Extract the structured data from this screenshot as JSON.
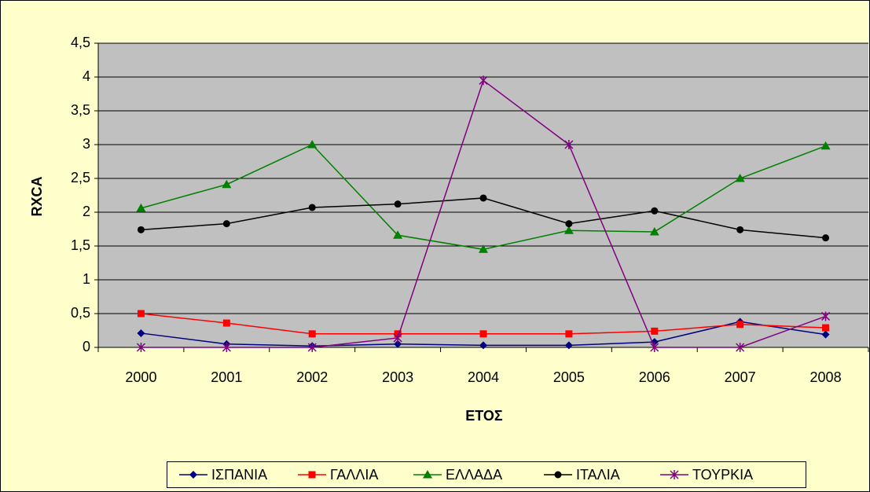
{
  "chart_data": {
    "type": "line",
    "categories": [
      "2000",
      "2001",
      "2002",
      "2003",
      "2004",
      "2005",
      "2006",
      "2007",
      "2008"
    ],
    "xlabel": "ΕΤΟΣ",
    "ylabel": "RXCA",
    "ylim": [
      0,
      4.5
    ],
    "yticks": [
      0,
      {
        "value": 0.5,
        "label": "0,5"
      },
      1,
      {
        "value": 1.5,
        "label": "1,5"
      },
      2,
      {
        "value": 2.5,
        "label": "2,5"
      },
      3,
      {
        "value": 3.5,
        "label": "3,5"
      },
      4,
      {
        "value": 4.5,
        "label": "4,5"
      }
    ],
    "grid": true,
    "legend": "bottom",
    "series": [
      {
        "name": "ΙΣΠΑΝΙΑ",
        "color": "#000080",
        "marker": "diamond",
        "values": [
          0.21,
          0.05,
          0.02,
          0.05,
          0.03,
          0.03,
          0.08,
          0.38,
          0.19
        ]
      },
      {
        "name": "ΓΑΛΛΙΑ",
        "color": "#ff0000",
        "marker": "square",
        "values": [
          0.5,
          0.36,
          0.2,
          0.2,
          0.2,
          0.2,
          0.24,
          0.34,
          0.29
        ]
      },
      {
        "name": "ΕΛΛΑΔΑ",
        "color": "#008000",
        "marker": "triangle",
        "values": [
          2.06,
          2.41,
          3.0,
          1.66,
          1.45,
          1.73,
          1.71,
          2.5,
          2.98
        ]
      },
      {
        "name": "ΙΤΑΛΙΑ",
        "color": "#000000",
        "marker": "circle",
        "values": [
          1.74,
          1.83,
          2.07,
          2.12,
          2.21,
          1.83,
          2.02,
          1.74,
          1.62
        ]
      },
      {
        "name": "ΤΟΥΡΚΙΑ",
        "color": "#800080",
        "marker": "star",
        "values": [
          0,
          0,
          0,
          0.14,
          3.95,
          3.0,
          0,
          0,
          0.46
        ]
      }
    ]
  }
}
